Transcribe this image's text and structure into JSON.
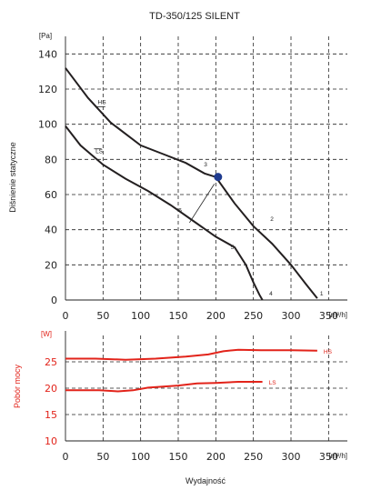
{
  "chart_data": [
    {
      "type": "line",
      "title": "TD-350/125 SILENT",
      "xlabel": "",
      "ylabel": "Dišnienie statyczne",
      "x_unit": "[m³/h]",
      "y_unit": "[Pa]",
      "xlim": [
        0,
        375
      ],
      "ylim": [
        0,
        150
      ],
      "x_ticks": [
        0,
        50,
        100,
        150,
        200,
        250,
        300,
        350
      ],
      "y_ticks": [
        0,
        20,
        40,
        60,
        80,
        100,
        120,
        140
      ],
      "grid": true,
      "series": [
        {
          "name": "HS",
          "x": [
            0,
            30,
            60,
            100,
            130,
            160,
            185,
            200,
            225,
            250,
            275,
            300,
            320,
            335
          ],
          "y": [
            132,
            115,
            101,
            88,
            83,
            78,
            72,
            70,
            55,
            42,
            32,
            20,
            9,
            1
          ]
        },
        {
          "name": "LS",
          "x": [
            0,
            20,
            50,
            80,
            110,
            140,
            170,
            200,
            225,
            240,
            250,
            258,
            262
          ],
          "y": [
            99,
            88,
            77,
            69,
            62,
            54,
            45,
            36,
            30,
            20,
            10,
            3,
            0
          ]
        }
      ],
      "annotations": [
        {
          "text": "HS",
          "series": "HS"
        },
        {
          "text": "LS",
          "series": "LS"
        },
        {
          "text": "1",
          "x": 335,
          "y": 1
        },
        {
          "text": "2",
          "x": 270,
          "y": 45
        },
        {
          "text": "3",
          "x": 195,
          "y": 72
        },
        {
          "text": "4",
          "x": 265,
          "y": 1
        },
        {
          "text": "5",
          "x": 215,
          "y": 30
        },
        {
          "text": "6",
          "x": 160,
          "y": 50
        }
      ],
      "operating_point": {
        "x": 203,
        "y": 70,
        "color": "#1f3b8f"
      }
    },
    {
      "type": "line",
      "title": "",
      "xlabel": "Wydajność",
      "ylabel": "Pobór mocy",
      "x_unit": "[m³/h]",
      "y_unit": "[W]",
      "xlim": [
        0,
        375
      ],
      "ylim": [
        10,
        30
      ],
      "x_ticks": [
        0,
        50,
        100,
        150,
        200,
        250,
        300,
        350
      ],
      "y_ticks": [
        10,
        15,
        20,
        25
      ],
      "grid": true,
      "series": [
        {
          "name": "HS",
          "color": "#e2231a",
          "x": [
            0,
            40,
            80,
            120,
            160,
            190,
            210,
            230,
            260,
            300,
            335
          ],
          "y": [
            25.6,
            25.6,
            25.4,
            25.6,
            26.0,
            26.4,
            27.0,
            27.3,
            27.2,
            27.2,
            27.1
          ]
        },
        {
          "name": "LS",
          "color": "#e2231a",
          "x": [
            0,
            45,
            70,
            90,
            110,
            150,
            175,
            200,
            230,
            262
          ],
          "y": [
            19.6,
            19.6,
            19.4,
            19.6,
            20.1,
            20.5,
            20.9,
            21.0,
            21.2,
            21.2
          ]
        }
      ]
    }
  ],
  "colors": {
    "axis": "#222222",
    "curve": "#231f20",
    "power": "#e2231a",
    "marker": "#1f3b8f"
  }
}
